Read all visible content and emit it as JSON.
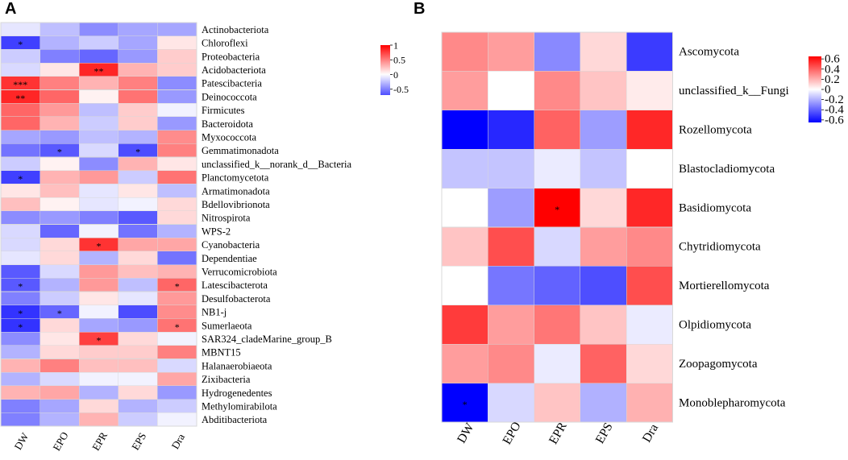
{
  "panels": [
    {
      "letter": "A",
      "chart_data": {
        "type": "heatmap",
        "columns": [
          "DW",
          "EPO",
          "EPR",
          "EPS",
          "Dra"
        ],
        "rows": [
          "Actinobacteriota",
          "Chloroflexi",
          "Proteobacteria",
          "Acidobacteriota",
          "Patescibacteria",
          "Deinococcota",
          "Firmicutes",
          "Bacteroidota",
          "Myxococcota",
          "Gemmatimonadota",
          "unclassified_k__norank_d__Bacteria",
          "Planctomycetota",
          "Armatimonadota",
          "Bdellovibrionota",
          "Nitrospirota",
          "WPS-2",
          "Cyanobacteria",
          "Dependentiae",
          "Verrucomicrobiota",
          "Latescibacterota",
          "Desulfobacterota",
          "NB1-j",
          "Sumerlaeota",
          "SAR324_cladeMarine_group_B",
          "MBNT15",
          "Halanaerobiaeota",
          "Zixibacteria",
          "Hydrogenedentes",
          "Methylomirabilota",
          "Abditibacteriota"
        ],
        "values": [
          [
            -0.1,
            -0.25,
            -0.45,
            -0.35,
            -0.35
          ],
          [
            -0.75,
            -0.3,
            -0.2,
            -0.35,
            0.1
          ],
          [
            -0.2,
            -0.5,
            -0.6,
            -0.4,
            0.2
          ],
          [
            -0.15,
            0.1,
            0.85,
            0.3,
            0.2
          ],
          [
            0.8,
            0.5,
            0.3,
            0.5,
            -0.45
          ],
          [
            0.85,
            0.6,
            0.05,
            0.55,
            -0.4
          ],
          [
            0.6,
            0.4,
            -0.25,
            0.2,
            -0.05
          ],
          [
            0.6,
            0.3,
            -0.2,
            0.2,
            -0.4
          ],
          [
            -0.35,
            -0.4,
            -0.25,
            -0.3,
            0.45
          ],
          [
            -0.55,
            -0.65,
            -0.15,
            -0.7,
            0.5
          ],
          [
            -0.2,
            0.05,
            -0.45,
            0.3,
            0.1
          ],
          [
            -0.75,
            0.3,
            0.4,
            -0.2,
            0.55
          ],
          [
            0.1,
            0.25,
            -0.1,
            0.1,
            -0.25
          ],
          [
            0.25,
            0.05,
            -0.1,
            -0.05,
            0.15
          ],
          [
            -0.45,
            -0.4,
            -0.5,
            -0.65,
            0.15
          ],
          [
            -0.15,
            -0.6,
            -0.05,
            -0.55,
            -0.3
          ],
          [
            -0.15,
            0.15,
            0.8,
            0.35,
            0.35
          ],
          [
            -0.1,
            0.15,
            -0.3,
            0.15,
            -0.55
          ],
          [
            -0.65,
            -0.15,
            0.4,
            0.25,
            0.3
          ],
          [
            -0.65,
            -0.3,
            0.4,
            -0.25,
            0.6
          ],
          [
            -0.5,
            -0.2,
            0.1,
            -0.1,
            0.4
          ],
          [
            -0.8,
            -0.6,
            -0.05,
            -0.7,
            0.45
          ],
          [
            -0.8,
            0.15,
            -0.35,
            -0.4,
            0.55
          ],
          [
            -0.45,
            0.1,
            0.75,
            0.15,
            -0.05
          ],
          [
            -0.3,
            0.15,
            0.2,
            0.2,
            0.5
          ],
          [
            0.3,
            0.5,
            0.25,
            0.25,
            -0.15
          ],
          [
            -0.3,
            -0.15,
            -0.05,
            -0.05,
            0.35
          ],
          [
            0.3,
            0.35,
            -0.3,
            0.15,
            -0.4
          ],
          [
            -0.5,
            -0.35,
            0.15,
            -0.3,
            -0.2
          ],
          [
            -0.5,
            -0.3,
            0.3,
            -0.2,
            -0.05
          ]
        ],
        "stars": [
          [
            "",
            "",
            "",
            "",
            ""
          ],
          [
            "*",
            "",
            "",
            "",
            ""
          ],
          [
            "",
            "",
            "",
            "",
            ""
          ],
          [
            "",
            "",
            "**",
            "",
            ""
          ],
          [
            "***",
            "",
            "",
            "",
            ""
          ],
          [
            "**",
            "",
            "",
            "",
            ""
          ],
          [
            "",
            "",
            "",
            "",
            ""
          ],
          [
            "",
            "",
            "",
            "",
            ""
          ],
          [
            "",
            "",
            "",
            "",
            ""
          ],
          [
            "",
            "*",
            "",
            "*",
            ""
          ],
          [
            "",
            "",
            "",
            "",
            ""
          ],
          [
            "*",
            "",
            "",
            "",
            ""
          ],
          [
            "",
            "",
            "",
            "",
            ""
          ],
          [
            "",
            "",
            "",
            "",
            ""
          ],
          [
            "",
            "",
            "",
            "",
            ""
          ],
          [
            "",
            "",
            "",
            "",
            ""
          ],
          [
            "",
            "",
            "*",
            "",
            ""
          ],
          [
            "",
            "",
            "",
            "",
            ""
          ],
          [
            "",
            "",
            "",
            "",
            ""
          ],
          [
            "*",
            "",
            "",
            "",
            "*"
          ],
          [
            "",
            "",
            "",
            "",
            ""
          ],
          [
            "*",
            "*",
            "",
            "",
            ""
          ],
          [
            "*",
            "",
            "",
            "",
            "*"
          ],
          [
            "",
            "",
            "*",
            "",
            ""
          ],
          [
            "",
            "",
            "",
            "",
            ""
          ],
          [
            "",
            "",
            "",
            "",
            ""
          ],
          [
            "",
            "",
            "",
            "",
            ""
          ],
          [
            "",
            "",
            "",
            "",
            ""
          ],
          [
            "",
            "",
            "",
            "",
            ""
          ],
          [
            "",
            "",
            "",
            "",
            ""
          ]
        ],
        "colorbar": {
          "range": [
            -0.7,
            1.0
          ],
          "ticks": [
            "1",
            "0.5",
            "0",
            "-0.5"
          ],
          "tick_values": [
            1,
            0.5,
            0,
            -0.5
          ]
        },
        "colors": {
          "low": "#0000ff",
          "mid": "#ffffff",
          "high": "#ff0000"
        }
      }
    },
    {
      "letter": "B",
      "chart_data": {
        "type": "heatmap",
        "columns": [
          "DW",
          "EPO",
          "EPR",
          "EPS",
          "Dra"
        ],
        "rows": [
          "Ascomycota",
          "unclassified_k__Fungi",
          "Rozellomycota",
          "Blastocladiomycota",
          "Basidiomycota",
          "Chytridiomycota",
          "Mortierellomycota",
          "Olpidiomycota",
          "Zoopagomycota",
          "Monoblepharomycota"
        ],
        "values": [
          [
            0.3,
            0.25,
            -0.3,
            0.1,
            -0.5
          ],
          [
            0.25,
            0.0,
            0.3,
            0.15,
            0.05
          ],
          [
            -0.65,
            -0.55,
            0.4,
            -0.25,
            0.55
          ],
          [
            -0.15,
            -0.15,
            -0.05,
            -0.15,
            0.0
          ],
          [
            0.0,
            -0.25,
            0.65,
            0.1,
            0.55
          ],
          [
            0.15,
            0.45,
            -0.1,
            0.25,
            0.3
          ],
          [
            0.0,
            -0.35,
            -0.4,
            -0.45,
            0.45
          ],
          [
            0.5,
            0.25,
            0.35,
            0.15,
            -0.05
          ],
          [
            0.25,
            0.3,
            -0.05,
            0.4,
            0.1
          ],
          [
            -0.65,
            -0.1,
            0.15,
            -0.2,
            0.2
          ]
        ],
        "stars": [
          [
            "",
            "",
            "",
            "",
            ""
          ],
          [
            "",
            "",
            "",
            "",
            ""
          ],
          [
            "",
            "",
            "",
            "",
            ""
          ],
          [
            "",
            "",
            "",
            "",
            ""
          ],
          [
            "",
            "",
            "*",
            "",
            ""
          ],
          [
            "",
            "",
            "",
            "",
            ""
          ],
          [
            "",
            "",
            "",
            "",
            ""
          ],
          [
            "",
            "",
            "",
            "",
            ""
          ],
          [
            "",
            "",
            "",
            "",
            ""
          ],
          [
            "*",
            "",
            "",
            "",
            ""
          ]
        ],
        "colorbar": {
          "range": [
            -0.65,
            0.65
          ],
          "ticks": [
            "0.6",
            "0.4",
            "0.2",
            "0",
            "-0.2",
            "-0.4",
            "-0.6"
          ],
          "tick_values": [
            0.6,
            0.4,
            0.2,
            0,
            -0.2,
            -0.4,
            -0.6
          ]
        },
        "colors": {
          "low": "#0000ff",
          "mid": "#ffffff",
          "high": "#ff0000"
        }
      }
    }
  ]
}
